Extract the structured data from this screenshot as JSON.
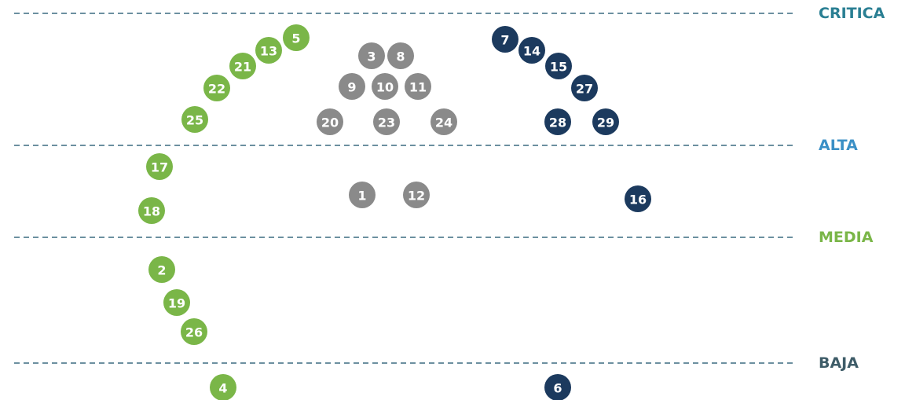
{
  "levels": [
    {
      "name": "CRITICA",
      "color": "#2a7f93"
    },
    {
      "name": "ALTA",
      "color": "#3b90c6"
    },
    {
      "name": "MEDIA",
      "color": "#7ab648"
    },
    {
      "name": "BAJA",
      "color": "#3e5c68"
    }
  ],
  "nodes": [
    {
      "label": "5",
      "color": "#7ab648"
    },
    {
      "label": "13",
      "color": "#7ab648"
    },
    {
      "label": "21",
      "color": "#7ab648"
    },
    {
      "label": "22",
      "color": "#7ab648"
    },
    {
      "label": "25",
      "color": "#7ab648"
    },
    {
      "label": "17",
      "color": "#7ab648"
    },
    {
      "label": "18",
      "color": "#7ab648"
    },
    {
      "label": "2",
      "color": "#7ab648"
    },
    {
      "label": "19",
      "color": "#7ab648"
    },
    {
      "label": "26",
      "color": "#7ab648"
    },
    {
      "label": "4",
      "color": "#7ab648"
    },
    {
      "label": "3",
      "color": "#8a8a8a"
    },
    {
      "label": "8",
      "color": "#8a8a8a"
    },
    {
      "label": "9",
      "color": "#8a8a8a"
    },
    {
      "label": "10",
      "color": "#8a8a8a"
    },
    {
      "label": "11",
      "color": "#8a8a8a"
    },
    {
      "label": "20",
      "color": "#8a8a8a"
    },
    {
      "label": "23",
      "color": "#8a8a8a"
    },
    {
      "label": "24",
      "color": "#8a8a8a"
    },
    {
      "label": "1",
      "color": "#8a8a8a"
    },
    {
      "label": "12",
      "color": "#8a8a8a"
    },
    {
      "label": "7",
      "color": "#1c3a5e"
    },
    {
      "label": "14",
      "color": "#1c3a5e"
    },
    {
      "label": "15",
      "color": "#1c3a5e"
    },
    {
      "label": "27",
      "color": "#1c3a5e"
    },
    {
      "label": "28",
      "color": "#1c3a5e"
    },
    {
      "label": "29",
      "color": "#1c3a5e"
    },
    {
      "label": "16",
      "color": "#1c3a5e"
    },
    {
      "label": "6",
      "color": "#1c3a5e"
    }
  ]
}
